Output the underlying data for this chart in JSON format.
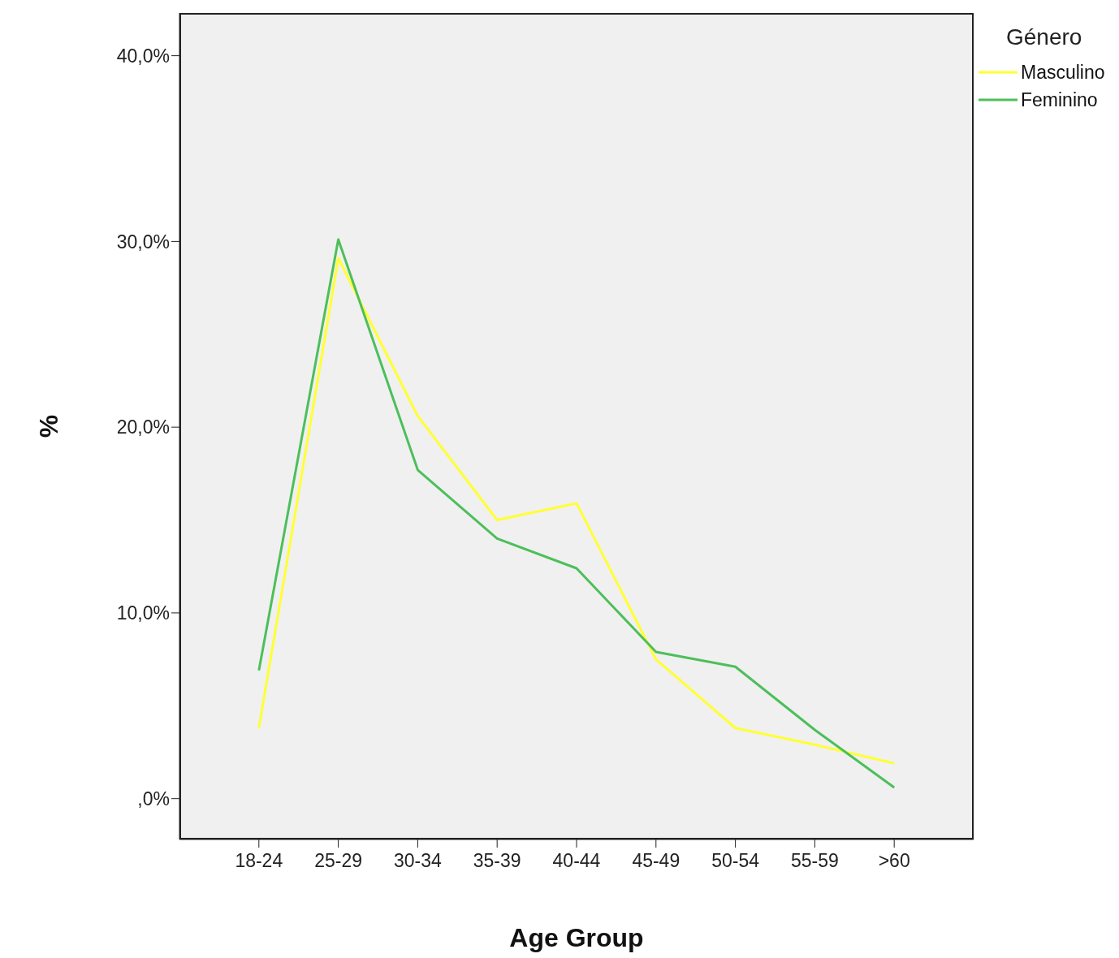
{
  "chart_data": {
    "type": "line",
    "xlabel": "Age Group",
    "ylabel": "%",
    "legend_title": "Género",
    "legend": "top right",
    "grid": false,
    "marker": "none",
    "line_style": "solid",
    "categories": [
      "18-24",
      "25-29",
      "30-34",
      "35-39",
      "40-44",
      "45-49",
      "50-54",
      "55-59",
      ">60"
    ],
    "ylim": [
      -2.2,
      42.3
    ],
    "yticks": [
      {
        "value": 0,
        "label": ",0%"
      },
      {
        "value": 10,
        "label": "10,0%"
      },
      {
        "value": 20,
        "label": "20,0%"
      },
      {
        "value": 30,
        "label": "30,0%"
      },
      {
        "value": 40,
        "label": "40,0%"
      }
    ],
    "series": [
      {
        "name": "Masculino",
        "color": "#ffff33",
        "values": [
          3.8,
          29.1,
          20.6,
          15.0,
          15.9,
          7.5,
          3.8,
          2.9,
          1.9
        ]
      },
      {
        "name": "Feminino",
        "color": "#4cbf5a",
        "values": [
          6.9,
          30.1,
          17.7,
          14.0,
          12.4,
          7.9,
          7.1,
          3.7,
          0.6
        ]
      }
    ]
  }
}
